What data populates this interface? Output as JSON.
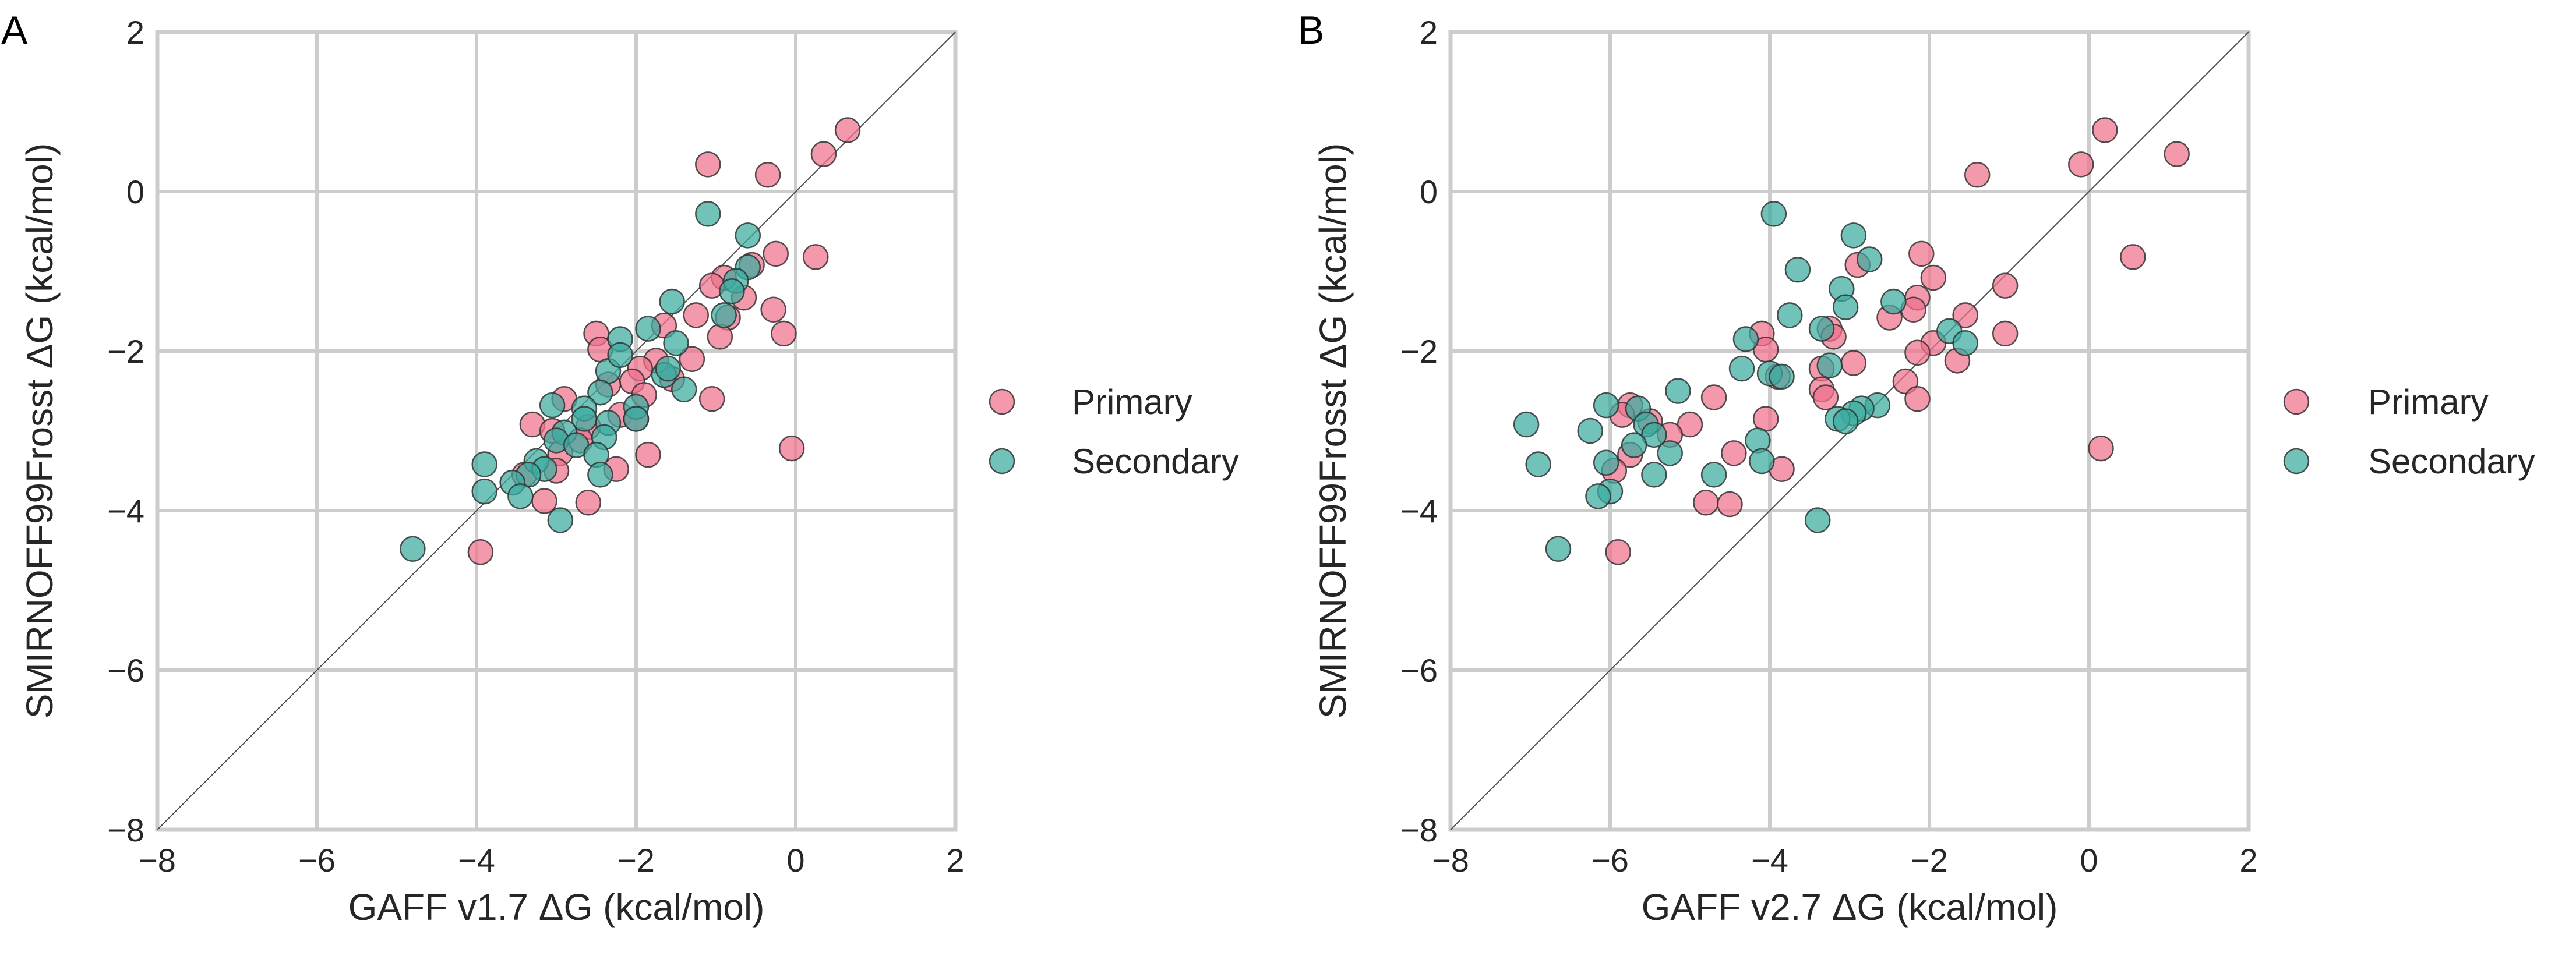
{
  "colors": {
    "Primary": "#f0708a",
    "Secondary": "#3aaca0"
  },
  "chart_data": [
    {
      "type": "scatter",
      "panel_label": "A",
      "xlabel": "GAFF v1.7 ΔG (kcal/mol)",
      "ylabel": "SMIRNOFF99Frosst ΔG (kcal/mol)",
      "xlim": [
        -8,
        2
      ],
      "ylim": [
        -8,
        2
      ],
      "xticks": [
        -8,
        -6,
        -4,
        -2,
        0,
        2
      ],
      "yticks": [
        -8,
        -6,
        -4,
        -2,
        0,
        2
      ],
      "xtick_labels": [
        "−8",
        "−6",
        "−4",
        "−2",
        "0",
        "2"
      ],
      "ytick_labels": [
        "−8",
        "−6",
        "−4",
        "−2",
        "0",
        "2"
      ],
      "grid": true,
      "identity_line": true,
      "legend_placement": "right",
      "series": [
        {
          "name": "Primary",
          "points": [
            [
              0.65,
              0.77
            ],
            [
              0.35,
              0.47
            ],
            [
              -0.35,
              0.21
            ],
            [
              -1.1,
              0.34
            ],
            [
              0.25,
              -0.82
            ],
            [
              -0.25,
              -0.78
            ],
            [
              -0.55,
              -0.92
            ],
            [
              -0.9,
              -1.08
            ],
            [
              -1.05,
              -1.18
            ],
            [
              -0.65,
              -1.33
            ],
            [
              -0.28,
              -1.48
            ],
            [
              -0.85,
              -1.58
            ],
            [
              -0.95,
              -1.82
            ],
            [
              -0.15,
              -1.78
            ],
            [
              -1.25,
              -1.55
            ],
            [
              -1.65,
              -1.68
            ],
            [
              -2.5,
              -1.78
            ],
            [
              -2.45,
              -1.98
            ],
            [
              -1.75,
              -2.12
            ],
            [
              -1.95,
              -2.22
            ],
            [
              -1.3,
              -2.1
            ],
            [
              -1.55,
              -2.35
            ],
            [
              -2.05,
              -2.38
            ],
            [
              -1.9,
              -2.55
            ],
            [
              -2.35,
              -2.42
            ],
            [
              -1.05,
              -2.6
            ],
            [
              -2.2,
              -2.8
            ],
            [
              -2.0,
              -2.85
            ],
            [
              -2.9,
              -2.6
            ],
            [
              -3.3,
              -2.92
            ],
            [
              -2.6,
              -2.95
            ],
            [
              -3.05,
              -3.0
            ],
            [
              -2.7,
              -3.12
            ],
            [
              -2.95,
              -3.28
            ],
            [
              -1.85,
              -3.3
            ],
            [
              -0.05,
              -3.22
            ],
            [
              -2.25,
              -3.48
            ],
            [
              -3.0,
              -3.5
            ],
            [
              -3.4,
              -3.55
            ],
            [
              -3.15,
              -3.88
            ],
            [
              -2.6,
              -3.9
            ],
            [
              -3.95,
              -4.52
            ]
          ]
        },
        {
          "name": "Secondary",
          "points": [
            [
              -1.1,
              -0.28
            ],
            [
              -0.6,
              -0.55
            ],
            [
              -0.6,
              -0.95
            ],
            [
              -0.75,
              -1.12
            ],
            [
              -0.8,
              -1.25
            ],
            [
              -1.55,
              -1.38
            ],
            [
              -0.9,
              -1.55
            ],
            [
              -1.85,
              -1.72
            ],
            [
              -2.2,
              -1.85
            ],
            [
              -1.5,
              -1.9
            ],
            [
              -2.35,
              -2.25
            ],
            [
              -1.65,
              -2.3
            ],
            [
              -1.4,
              -2.48
            ],
            [
              -2.45,
              -2.52
            ],
            [
              -2.0,
              -2.7
            ],
            [
              -3.05,
              -2.68
            ],
            [
              -2.65,
              -2.72
            ],
            [
              -2.65,
              -2.85
            ],
            [
              -2.35,
              -2.9
            ],
            [
              -2.0,
              -2.85
            ],
            [
              -2.9,
              -3.02
            ],
            [
              -3.0,
              -3.12
            ],
            [
              -2.4,
              -3.08
            ],
            [
              -2.75,
              -3.18
            ],
            [
              -2.5,
              -3.3
            ],
            [
              -3.25,
              -3.38
            ],
            [
              -3.9,
              -3.42
            ],
            [
              -3.15,
              -3.48
            ],
            [
              -2.45,
              -3.55
            ],
            [
              -3.35,
              -3.55
            ],
            [
              -3.55,
              -3.65
            ],
            [
              -3.9,
              -3.76
            ],
            [
              -3.45,
              -3.82
            ],
            [
              -2.95,
              -4.12
            ],
            [
              -4.8,
              -4.48
            ],
            [
              -2.2,
              -2.05
            ],
            [
              -1.6,
              -2.22
            ]
          ]
        }
      ]
    },
    {
      "type": "scatter",
      "panel_label": "B",
      "xlabel": "GAFF v2.7 ΔG (kcal/mol)",
      "ylabel": "SMIRNOFF99Frosst ΔG (kcal/mol)",
      "xlim": [
        -8,
        2
      ],
      "ylim": [
        -8,
        2
      ],
      "xticks": [
        -8,
        -6,
        -4,
        -2,
        0,
        2
      ],
      "yticks": [
        -8,
        -6,
        -4,
        -2,
        0,
        2
      ],
      "xtick_labels": [
        "−8",
        "−6",
        "−4",
        "−2",
        "0",
        "2"
      ],
      "ytick_labels": [
        "−8",
        "−6",
        "−4",
        "−2",
        "0",
        "2"
      ],
      "grid": true,
      "identity_line": true,
      "legend_placement": "right",
      "series": [
        {
          "name": "Primary",
          "points": [
            [
              0.2,
              0.77
            ],
            [
              1.1,
              0.47
            ],
            [
              -0.1,
              0.34
            ],
            [
              -1.4,
              0.21
            ],
            [
              0.55,
              -0.82
            ],
            [
              -2.1,
              -0.78
            ],
            [
              -2.9,
              -0.92
            ],
            [
              -1.95,
              -1.08
            ],
            [
              -1.05,
              -1.18
            ],
            [
              -2.15,
              -1.33
            ],
            [
              -2.2,
              -1.48
            ],
            [
              -1.55,
              -1.55
            ],
            [
              -2.5,
              -1.58
            ],
            [
              -3.25,
              -1.72
            ],
            [
              -4.1,
              -1.78
            ],
            [
              -3.2,
              -1.82
            ],
            [
              -1.05,
              -1.78
            ],
            [
              -1.95,
              -1.9
            ],
            [
              -4.05,
              -1.98
            ],
            [
              -2.15,
              -2.02
            ],
            [
              -1.65,
              -2.12
            ],
            [
              -3.35,
              -2.22
            ],
            [
              -2.95,
              -2.15
            ],
            [
              -3.9,
              -2.32
            ],
            [
              -2.3,
              -2.38
            ],
            [
              -3.35,
              -2.48
            ],
            [
              -3.3,
              -2.58
            ],
            [
              -2.15,
              -2.6
            ],
            [
              -4.7,
              -2.58
            ],
            [
              -5.75,
              -2.68
            ],
            [
              -5.85,
              -2.8
            ],
            [
              -5.5,
              -2.88
            ],
            [
              -4.05,
              -2.85
            ],
            [
              -5.0,
              -2.92
            ],
            [
              -5.25,
              -3.05
            ],
            [
              -5.75,
              -3.3
            ],
            [
              0.15,
              -3.22
            ],
            [
              -4.45,
              -3.28
            ],
            [
              -3.85,
              -3.48
            ],
            [
              -5.95,
              -3.5
            ],
            [
              -4.8,
              -3.9
            ],
            [
              -4.5,
              -3.92
            ],
            [
              -5.9,
              -4.52
            ]
          ]
        },
        {
          "name": "Secondary",
          "points": [
            [
              -3.95,
              -0.28
            ],
            [
              -2.95,
              -0.55
            ],
            [
              -2.75,
              -0.85
            ],
            [
              -3.65,
              -0.98
            ],
            [
              -3.1,
              -1.22
            ],
            [
              -2.45,
              -1.38
            ],
            [
              -3.05,
              -1.45
            ],
            [
              -3.75,
              -1.55
            ],
            [
              -3.35,
              -1.72
            ],
            [
              -1.75,
              -1.75
            ],
            [
              -4.3,
              -1.85
            ],
            [
              -1.55,
              -1.9
            ],
            [
              -3.25,
              -2.18
            ],
            [
              -4.35,
              -2.22
            ],
            [
              -4.0,
              -2.28
            ],
            [
              -3.85,
              -2.32
            ],
            [
              -5.15,
              -2.5
            ],
            [
              -6.05,
              -2.68
            ],
            [
              -5.65,
              -2.72
            ],
            [
              -2.65,
              -2.68
            ],
            [
              -2.85,
              -2.72
            ],
            [
              -2.95,
              -2.78
            ],
            [
              -3.15,
              -2.85
            ],
            [
              -3.05,
              -2.88
            ],
            [
              -5.55,
              -2.92
            ],
            [
              -7.05,
              -2.92
            ],
            [
              -6.25,
              -3.0
            ],
            [
              -5.45,
              -3.05
            ],
            [
              -5.7,
              -3.18
            ],
            [
              -4.15,
              -3.12
            ],
            [
              -5.25,
              -3.28
            ],
            [
              -6.05,
              -3.4
            ],
            [
              -4.1,
              -3.38
            ],
            [
              -6.9,
              -3.42
            ],
            [
              -5.45,
              -3.55
            ],
            [
              -4.7,
              -3.55
            ],
            [
              -6.0,
              -3.76
            ],
            [
              -6.15,
              -3.82
            ],
            [
              -3.4,
              -4.12
            ],
            [
              -6.65,
              -4.48
            ]
          ]
        }
      ]
    }
  ]
}
